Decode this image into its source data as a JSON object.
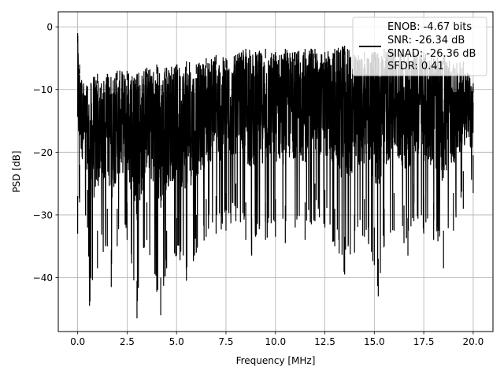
{
  "chart_data": {
    "type": "line",
    "xlabel": "Frequency [MHz]",
    "ylabel": "PSD [dB]",
    "xlim": [
      -0.98,
      21.0
    ],
    "ylim": [
      -48.6,
      2.4
    ],
    "x_ticks": [
      0.0,
      2.5,
      5.0,
      7.5,
      10.0,
      12.5,
      15.0,
      17.5,
      20.0
    ],
    "x_tick_labels": [
      "0.0",
      "2.5",
      "5.0",
      "7.5",
      "10.0",
      "12.5",
      "15.0",
      "17.5",
      "20.0"
    ],
    "y_ticks": [
      0,
      -10,
      -20,
      -30,
      -40
    ],
    "y_tick_labels": [
      "0",
      "−10",
      "−20",
      "−30",
      "−40"
    ],
    "grid": true,
    "legend_position": "top-right",
    "legend_lines": [
      "ENOB: -4.67 bits",
      "SNR: -26.34 dB",
      "SINAD: -26.36 dB",
      "SFDR: 0.41"
    ],
    "series": [
      {
        "color": "#000000",
        "upper_envelope": {
          "x": [
            0.0,
            0.1,
            0.2,
            0.3,
            0.5,
            0.8,
            1.0,
            1.2,
            1.5,
            2.0,
            2.5,
            3.0,
            3.5,
            4.0,
            4.5,
            5.0,
            5.5,
            6.0,
            6.5,
            7.0,
            7.5,
            8.0,
            8.5,
            9.0,
            9.5,
            10.0,
            10.5,
            11.0,
            11.5,
            12.0,
            12.5,
            13.0,
            13.5,
            14.0,
            14.5,
            15.0,
            15.5,
            16.0,
            16.5,
            17.0,
            17.5,
            18.0,
            18.5,
            19.0,
            19.5,
            20.0
          ],
          "y": [
            -1.0,
            -6.0,
            -8.5,
            -9.0,
            -9.5,
            -8.0,
            -7.5,
            -9.0,
            -7.5,
            -7.0,
            -7.0,
            -7.5,
            -6.5,
            -6.0,
            -6.5,
            -6.0,
            -5.5,
            -6.0,
            -5.0,
            -4.5,
            -5.0,
            -4.5,
            -3.5,
            -4.0,
            -3.5,
            -4.0,
            -3.5,
            -4.0,
            -3.5,
            -3.5,
            -4.0,
            -3.5,
            -3.0,
            -4.5,
            -4.0,
            -4.0,
            -3.5,
            -3.5,
            -4.5,
            -4.0,
            -4.0,
            -5.0,
            -4.5,
            -6.0,
            -5.5,
            -9.0
          ]
        },
        "lower_envelope": {
          "x": [
            0.0,
            0.1,
            0.5,
            0.6,
            1.0,
            1.5,
            1.7,
            2.0,
            2.5,
            3.0,
            3.5,
            4.2,
            4.5,
            5.0,
            5.5,
            6.0,
            6.5,
            7.0,
            7.5,
            8.0,
            8.5,
            8.8,
            9.0,
            9.5,
            10.0,
            10.5,
            11.0,
            11.5,
            12.0,
            12.5,
            13.0,
            13.5,
            14.0,
            14.5,
            15.0,
            15.2,
            15.5,
            16.0,
            16.5,
            16.7,
            17.0,
            17.5,
            18.0,
            18.5,
            19.0,
            19.5,
            20.0
          ],
          "y": [
            -33.0,
            -28.0,
            -32.0,
            -44.5,
            -38.5,
            -35.0,
            -41.5,
            -35.0,
            -34.0,
            -46.5,
            -34.0,
            -46.0,
            -38.5,
            -36.5,
            -40.5,
            -36.0,
            -33.5,
            -33.0,
            -32.5,
            -31.0,
            -34.0,
            -36.5,
            -33.5,
            -34.0,
            -33.5,
            -34.5,
            -32.0,
            -34.0,
            -31.0,
            -32.0,
            -35.0,
            -39.5,
            -36.0,
            -33.5,
            -38.0,
            -43.0,
            -35.0,
            -32.5,
            -34.5,
            -36.5,
            -31.0,
            -33.0,
            -34.0,
            -38.5,
            -32.5,
            -29.0,
            -26.5
          ]
        }
      }
    ]
  }
}
